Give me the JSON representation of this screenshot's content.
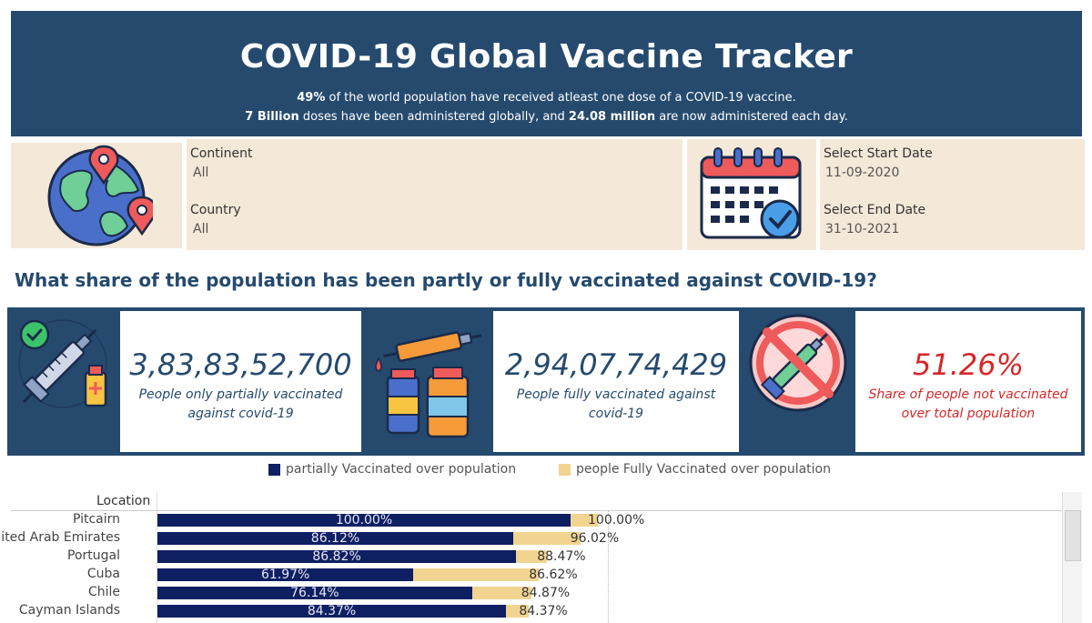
{
  "header": {
    "title": "COVID-19 Global Vaccine Tracker",
    "line1_bold": "49%",
    "line1_rest": " of the world population  have received atleast one dose of  a COVID-19 vaccine.",
    "line2_bold1": "7 Billion",
    "line2_mid": " doses have been administered globally, and ",
    "line2_bold2": "24.08 million",
    "line2_rest": " are now  administered each day."
  },
  "filters": {
    "continent_label": "Continent",
    "continent_value": "All",
    "country_label": "Country",
    "country_value": "All",
    "start_label": "Select Start Date",
    "start_value": "11-09-2020",
    "end_label": "Select End Date",
    "end_value": "31-10-2021"
  },
  "question": "What share of the population has been partly or fully vaccinated against COVID-19?",
  "kpis": [
    {
      "value": "3,83,83,52,700",
      "desc_line1": "People only partially vaccinated",
      "desc_line2": "against covid-19"
    },
    {
      "value": "2,94,07,74,429",
      "desc_line1": "People fully vaccinated against",
      "desc_line2": "covid-19"
    },
    {
      "value": "51.26%",
      "desc_line1": "Share of people not vaccinated",
      "desc_line2": "over total population"
    }
  ],
  "icons": [
    "globe-with-pins-icon",
    "calendar-check-icon",
    "syringe-check-icon",
    "vaccine-vials-icon",
    "no-vaccine-icon"
  ],
  "colors": {
    "navy": "#254a6e",
    "partial": "#0e1f62",
    "full": "#f2d491",
    "beige": "#f4e8d8",
    "red": "#d62728"
  },
  "chart_data": {
    "type": "bar",
    "orientation": "horizontal",
    "row_header": "Location",
    "legend": [
      "partially Vaccinated over population",
      "people Fully Vaccinated over population"
    ],
    "categories": [
      "Pitcairn",
      "United Arab Emirates",
      "Portugal",
      "Cuba",
      "Chile",
      "Cayman Islands"
    ],
    "series": [
      {
        "name": "partially Vaccinated over population",
        "values": [
          100.0,
          86.12,
          86.82,
          61.97,
          76.14,
          84.37
        ]
      },
      {
        "name": "people Fully Vaccinated over population",
        "values": [
          100.0,
          96.02,
          88.47,
          86.62,
          84.87,
          84.37
        ]
      }
    ],
    "partial_labels": [
      "100.00%",
      "86.12%",
      "86.82%",
      "61.97%",
      "76.14%",
      "84.37%"
    ],
    "full_labels": [
      "100.00%",
      "96.02%",
      "88.47%",
      "86.62%",
      "84.87%",
      "84.37%"
    ],
    "legend_position": "top"
  }
}
